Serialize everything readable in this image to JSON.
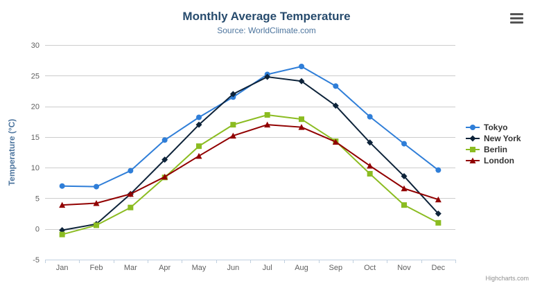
{
  "header": {
    "title": "Monthly Average Temperature",
    "subtitle": "Source: WorldClimate.com"
  },
  "icons": {
    "context_menu": "hamburger-icon"
  },
  "credits": {
    "label": "Highcharts.com"
  },
  "colors": {
    "title": "#274b6d",
    "subtitle": "#4d759e",
    "axis_title": "#4d759e",
    "tick_label": "#606060",
    "gridline": "#cccccc",
    "axis_line": "#c0d0e0",
    "legend_text": "#333333",
    "credits": "#909090"
  },
  "chart_data": {
    "type": "line",
    "title": "Monthly Average Temperature",
    "subtitle": "Source: WorldClimate.com",
    "xlabel": "",
    "ylabel": "Temperature (°C)",
    "categories": [
      "Jan",
      "Feb",
      "Mar",
      "Apr",
      "May",
      "Jun",
      "Jul",
      "Aug",
      "Sep",
      "Oct",
      "Nov",
      "Dec"
    ],
    "ylim": [
      -5,
      30
    ],
    "yticks": [
      -5,
      0,
      5,
      10,
      15,
      20,
      25,
      30
    ],
    "grid": true,
    "legend_position": "right",
    "series": [
      {
        "name": "Tokyo",
        "color": "#2f7ed8",
        "marker": "circle",
        "values": [
          7.0,
          6.9,
          9.5,
          14.5,
          18.2,
          21.5,
          25.2,
          26.5,
          23.3,
          18.3,
          13.9,
          9.6
        ]
      },
      {
        "name": "New York",
        "color": "#0d233a",
        "marker": "diamond",
        "values": [
          -0.2,
          0.8,
          5.7,
          11.3,
          17.0,
          22.0,
          24.8,
          24.1,
          20.1,
          14.1,
          8.6,
          2.5
        ]
      },
      {
        "name": "Berlin",
        "color": "#8bbc21",
        "marker": "square",
        "values": [
          -0.9,
          0.6,
          3.5,
          8.4,
          13.5,
          17.0,
          18.6,
          17.9,
          14.3,
          9.0,
          3.9,
          1.0
        ]
      },
      {
        "name": "London",
        "color": "#910000",
        "marker": "triangle",
        "values": [
          3.9,
          4.2,
          5.7,
          8.5,
          11.9,
          15.2,
          17.0,
          16.6,
          14.2,
          10.3,
          6.6,
          4.8
        ]
      }
    ]
  }
}
